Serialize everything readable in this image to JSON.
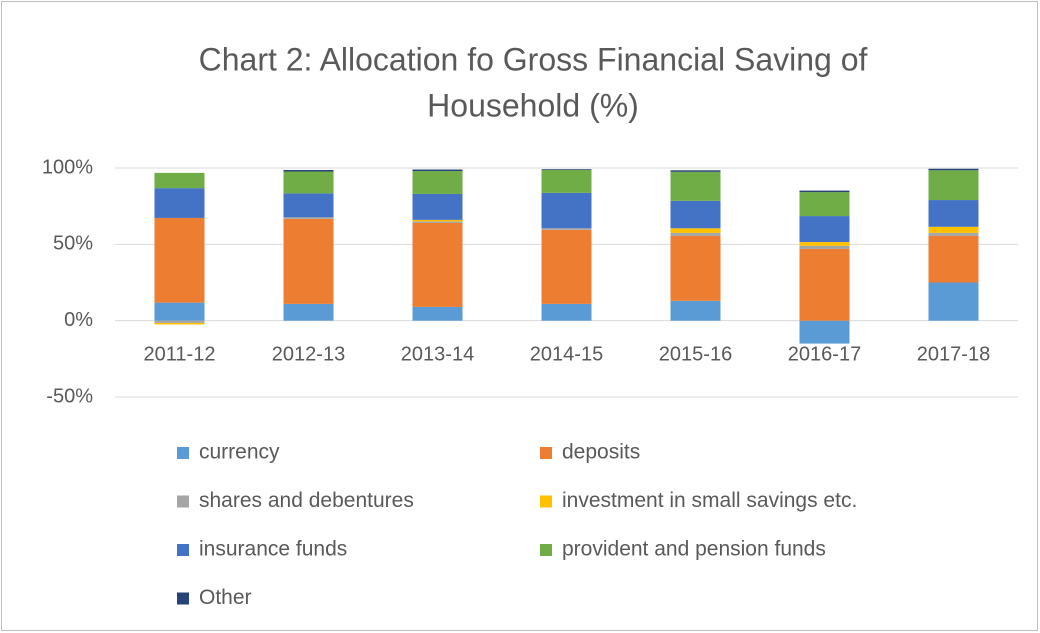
{
  "chart_data": {
    "type": "stacked_bar",
    "title": [
      "Chart 2: Allocation fo Gross Financial Saving of",
      "Household (%)"
    ],
    "categories": [
      "2011-12",
      "2012-13",
      "2013-14",
      "2014-15",
      "2015-16",
      "2016-17",
      "2017-18"
    ],
    "series": [
      {
        "name": "currency",
        "color": "#5b9bd5",
        "values": [
          11.8,
          11,
          9,
          11,
          13,
          -15,
          25
        ]
      },
      {
        "name": "deposits",
        "color": "#ed7d31",
        "values": [
          55.5,
          55.7,
          55,
          48.5,
          42.5,
          47,
          30.5
        ]
      },
      {
        "name": "shares and debentures",
        "color": "#a5a5a5",
        "values": [
          -1.5,
          1,
          1,
          1,
          2,
          2,
          2
        ]
      },
      {
        "name": "investment in small savings etc.",
        "color": "#ffc000",
        "values": [
          -1,
          0,
          1,
          0,
          3,
          2.5,
          4
        ]
      },
      {
        "name": "insurance funds",
        "color": "#4472c4",
        "values": [
          19.5,
          15.7,
          17,
          23.2,
          18,
          17,
          17.5
        ]
      },
      {
        "name": "provident and pension funds",
        "color": "#70ad47",
        "values": [
          10,
          14.3,
          15,
          15,
          19,
          15.7,
          19.5
        ]
      },
      {
        "name": "Other",
        "color": "#264478",
        "values": [
          0,
          1,
          1,
          0.5,
          1,
          1,
          1
        ]
      }
    ],
    "ylim": [
      -50,
      100
    ],
    "yticks": [
      {
        "value": -50,
        "label": "-50%"
      },
      {
        "value": 0,
        "label": "0%"
      },
      {
        "value": 50,
        "label": "50%"
      },
      {
        "value": 100,
        "label": "100%"
      }
    ],
    "grid": true
  }
}
